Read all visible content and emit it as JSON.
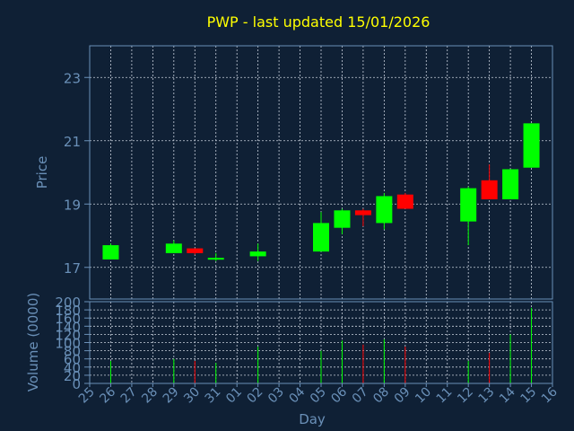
{
  "chart_data": [
    {
      "type": "candlestick",
      "title": "PWP - last updated 15/01/2026",
      "ylabel": "Price",
      "ylim": [
        16,
        24
      ],
      "yticks": [
        17,
        19,
        21,
        23
      ],
      "grid": true,
      "colors": {
        "up": "#00ff00",
        "down": "#ff0000"
      },
      "x": [
        "25",
        "26",
        "27",
        "28",
        "29",
        "30",
        "31",
        "01",
        "02",
        "03",
        "04",
        "05",
        "06",
        "07",
        "08",
        "09",
        "10",
        "11",
        "12",
        "13",
        "14",
        "15",
        "16"
      ],
      "candles": [
        {
          "day": "26",
          "open": 17.25,
          "high": 17.75,
          "low": 17.25,
          "close": 17.7
        },
        {
          "day": "29",
          "open": 17.45,
          "high": 17.85,
          "low": 17.45,
          "close": 17.75
        },
        {
          "day": "30",
          "open": 17.6,
          "high": 17.6,
          "low": 17.4,
          "close": 17.45
        },
        {
          "day": "31",
          "open": 17.25,
          "high": 17.45,
          "low": 17.2,
          "close": 17.3
        },
        {
          "day": "02",
          "open": 17.35,
          "high": 17.75,
          "low": 17.2,
          "close": 17.5
        },
        {
          "day": "05",
          "open": 17.5,
          "high": 18.75,
          "low": 17.5,
          "close": 18.4
        },
        {
          "day": "06",
          "open": 18.25,
          "high": 18.85,
          "low": 18.05,
          "close": 18.8
        },
        {
          "day": "07",
          "open": 18.8,
          "high": 18.85,
          "low": 18.3,
          "close": 18.65
        },
        {
          "day": "08",
          "open": 18.4,
          "high": 19.35,
          "low": 18.2,
          "close": 19.25
        },
        {
          "day": "09",
          "open": 19.3,
          "high": 19.35,
          "low": 18.85,
          "close": 18.85
        },
        {
          "day": "12",
          "open": 18.45,
          "high": 19.55,
          "low": 17.7,
          "close": 19.5
        },
        {
          "day": "13",
          "open": 19.75,
          "high": 20.25,
          "low": 19.15,
          "close": 19.15
        },
        {
          "day": "14",
          "open": 19.15,
          "high": 20.1,
          "low": 19.15,
          "close": 20.1
        },
        {
          "day": "15",
          "open": 20.15,
          "high": 21.55,
          "low": 20.15,
          "close": 21.55
        }
      ]
    },
    {
      "type": "bar",
      "ylabel": "Volume (0000)",
      "xlabel": "Day",
      "ylim": [
        0,
        200
      ],
      "yticks": [
        0,
        20,
        40,
        60,
        80,
        100,
        120,
        140,
        160,
        180,
        200
      ],
      "grid": true,
      "categories": [
        "26",
        "29",
        "30",
        "31",
        "02",
        "05",
        "06",
        "07",
        "08",
        "09",
        "12",
        "13",
        "14",
        "15"
      ],
      "values": [
        55,
        60,
        55,
        50,
        90,
        80,
        105,
        95,
        108,
        90,
        55,
        75,
        120,
        185
      ],
      "directions": [
        "up",
        "up",
        "down",
        "up",
        "up",
        "up",
        "up",
        "down",
        "up",
        "down",
        "up",
        "down",
        "up",
        "up"
      ]
    }
  ]
}
